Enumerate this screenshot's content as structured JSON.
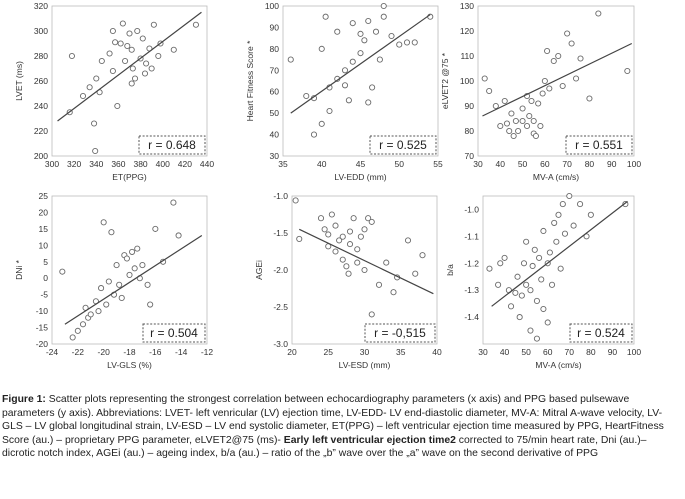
{
  "chart_data": [
    {
      "type": "scatter",
      "xlabel": "ET(PPG)",
      "ylabel": "LVET (ms)",
      "xlim": [
        300,
        440
      ],
      "ylim": [
        200,
        320
      ],
      "xticks": [
        300,
        320,
        340,
        360,
        380,
        400,
        420,
        440
      ],
      "yticks": [
        200,
        220,
        240,
        260,
        280,
        300,
        320
      ],
      "r_label": "r = 0.648",
      "fit": [
        [
          305,
          228
        ],
        [
          435,
          315
        ]
      ],
      "points": [
        [
          318,
          280
        ],
        [
          316,
          235
        ],
        [
          328,
          248
        ],
        [
          334,
          255
        ],
        [
          338,
          226
        ],
        [
          339,
          204
        ],
        [
          340,
          262
        ],
        [
          343,
          251
        ],
        [
          345,
          276
        ],
        [
          352,
          282
        ],
        [
          355,
          268
        ],
        [
          355,
          300
        ],
        [
          357,
          291
        ],
        [
          359,
          240
        ],
        [
          362,
          290
        ],
        [
          364,
          306
        ],
        [
          366,
          276
        ],
        [
          368,
          288
        ],
        [
          370,
          298
        ],
        [
          372,
          285
        ],
        [
          372,
          258
        ],
        [
          373,
          270
        ],
        [
          375,
          262
        ],
        [
          377,
          300
        ],
        [
          380,
          278
        ],
        [
          382,
          294
        ],
        [
          384,
          266
        ],
        [
          385,
          274
        ],
        [
          388,
          286
        ],
        [
          390,
          270
        ],
        [
          392,
          305
        ],
        [
          396,
          280
        ],
        [
          398,
          290
        ],
        [
          410,
          285
        ],
        [
          430,
          305
        ]
      ]
    },
    {
      "type": "scatter",
      "xlabel": "LV-EDD (mm)",
      "ylabel": "Heart Fitness Score *",
      "xlim": [
        35,
        55
      ],
      "ylim": [
        30,
        100
      ],
      "xticks": [
        35,
        40,
        45,
        50,
        55
      ],
      "yticks": [
        30,
        40,
        50,
        60,
        70,
        80,
        90,
        100
      ],
      "r_label": "r = 0.525",
      "fit": [
        [
          36,
          50
        ],
        [
          54,
          96
        ]
      ],
      "points": [
        [
          36,
          75
        ],
        [
          38,
          58
        ],
        [
          39,
          40
        ],
        [
          39,
          57
        ],
        [
          40,
          80
        ],
        [
          40,
          45
        ],
        [
          40.5,
          95
        ],
        [
          41,
          51
        ],
        [
          41,
          62
        ],
        [
          42,
          66
        ],
        [
          42,
          88
        ],
        [
          43,
          70
        ],
        [
          43,
          63
        ],
        [
          43.5,
          56
        ],
        [
          44,
          92
        ],
        [
          44,
          74
        ],
        [
          45,
          78
        ],
        [
          45,
          87
        ],
        [
          45.5,
          84
        ],
        [
          46,
          93
        ],
        [
          46,
          55
        ],
        [
          46.5,
          62
        ],
        [
          47,
          88
        ],
        [
          47.5,
          75
        ],
        [
          48,
          100
        ],
        [
          48,
          95
        ],
        [
          49,
          86
        ],
        [
          50,
          82
        ],
        [
          51,
          83
        ],
        [
          52,
          83
        ],
        [
          54,
          95
        ]
      ]
    },
    {
      "type": "scatter",
      "xlabel": "MV-A (cm/s)",
      "ylabel": "eLVET2 @75 *",
      "xlim": [
        30,
        100
      ],
      "ylim": [
        70,
        130
      ],
      "xticks": [
        30,
        40,
        50,
        60,
        70,
        80,
        90,
        100
      ],
      "yticks": [
        70,
        80,
        90,
        100,
        110,
        120,
        130
      ],
      "r_label": "r = 0.551",
      "fit": [
        [
          32,
          86
        ],
        [
          99,
          115
        ]
      ],
      "points": [
        [
          33,
          101
        ],
        [
          35,
          96
        ],
        [
          38,
          90
        ],
        [
          40,
          82
        ],
        [
          42,
          92
        ],
        [
          43,
          83
        ],
        [
          44,
          80
        ],
        [
          45,
          87
        ],
        [
          46,
          78
        ],
        [
          47,
          84
        ],
        [
          48,
          80
        ],
        [
          50,
          84
        ],
        [
          50,
          89
        ],
        [
          52,
          94
        ],
        [
          52,
          82
        ],
        [
          53,
          86
        ],
        [
          54,
          92
        ],
        [
          55,
          79
        ],
        [
          55,
          84
        ],
        [
          56,
          78
        ],
        [
          57,
          91
        ],
        [
          58,
          82
        ],
        [
          59,
          95
        ],
        [
          60,
          100
        ],
        [
          61,
          112
        ],
        [
          62,
          97
        ],
        [
          64,
          108
        ],
        [
          66,
          110
        ],
        [
          68,
          98
        ],
        [
          70,
          119
        ],
        [
          72,
          115
        ],
        [
          74,
          101
        ],
        [
          76,
          109
        ],
        [
          80,
          93
        ],
        [
          84,
          127
        ],
        [
          97,
          104
        ]
      ]
    },
    {
      "type": "scatter",
      "xlabel": "LV-GLS (%)",
      "ylabel": "DNi *",
      "xlim": [
        -24,
        -12
      ],
      "ylim": [
        -20,
        25
      ],
      "xticks": [
        -24,
        -22,
        -20,
        -18,
        -16,
        -14,
        -12
      ],
      "yticks": [
        -20,
        -15,
        -10,
        -5,
        0,
        5,
        10,
        15,
        20,
        25
      ],
      "r_label": "r = 0.504",
      "fit": [
        [
          -23,
          -14
        ],
        [
          -12.4,
          13
        ]
      ],
      "points": [
        [
          -23.2,
          2
        ],
        [
          -22.4,
          -18
        ],
        [
          -22,
          -16
        ],
        [
          -21.6,
          -14
        ],
        [
          -21.4,
          -9
        ],
        [
          -21.2,
          -12
        ],
        [
          -21,
          -11
        ],
        [
          -20.6,
          -7
        ],
        [
          -20.4,
          -10
        ],
        [
          -20.2,
          -3
        ],
        [
          -20,
          17
        ],
        [
          -19.8,
          -8
        ],
        [
          -19.6,
          -1
        ],
        [
          -19.4,
          14
        ],
        [
          -19.2,
          -5
        ],
        [
          -19,
          4
        ],
        [
          -18.8,
          -2
        ],
        [
          -18.6,
          -6
        ],
        [
          -18.4,
          7
        ],
        [
          -18.2,
          6
        ],
        [
          -18,
          1
        ],
        [
          -17.8,
          8
        ],
        [
          -17.6,
          3
        ],
        [
          -17.4,
          9
        ],
        [
          -17.2,
          0
        ],
        [
          -17,
          4
        ],
        [
          -16.6,
          -2
        ],
        [
          -16.4,
          -8
        ],
        [
          -16,
          15
        ],
        [
          -15.4,
          5
        ],
        [
          -14.6,
          23
        ],
        [
          -14.2,
          13
        ]
      ]
    },
    {
      "type": "scatter",
      "xlabel": "LV-ESD (mm)",
      "ylabel": "AGEi",
      "xlim": [
        20,
        40
      ],
      "ylim": [
        -3.0,
        -1.0
      ],
      "xticks": [
        20,
        25,
        30,
        35,
        40
      ],
      "yticks": [
        -1.0,
        -1.5,
        -2.0,
        -2.5,
        -3.0
      ],
      "yticklabels": [
        "-1.0",
        "-1.5",
        "-2.0",
        "-2.5",
        "-3.0"
      ],
      "r_label": "r = -0,515",
      "fit": [
        [
          21,
          -1.45
        ],
        [
          39.5,
          -2.32
        ]
      ],
      "points": [
        [
          20.5,
          -1.06
        ],
        [
          21,
          -1.58
        ],
        [
          24,
          -1.3
        ],
        [
          24.5,
          -1.45
        ],
        [
          25,
          -1.52
        ],
        [
          25,
          -1.68
        ],
        [
          25.5,
          -1.25
        ],
        [
          26,
          -1.75
        ],
        [
          26,
          -1.4
        ],
        [
          26.5,
          -1.6
        ],
        [
          27,
          -1.55
        ],
        [
          27,
          -1.86
        ],
        [
          27.5,
          -1.95
        ],
        [
          27.8,
          -2.05
        ],
        [
          28,
          -1.48
        ],
        [
          28,
          -1.65
        ],
        [
          28.5,
          -1.3
        ],
        [
          29,
          -1.72
        ],
        [
          29,
          -1.9
        ],
        [
          29.5,
          -1.55
        ],
        [
          30,
          -1.45
        ],
        [
          30,
          -2.0
        ],
        [
          30.5,
          -1.3
        ],
        [
          31,
          -1.35
        ],
        [
          31,
          -2.6
        ],
        [
          32,
          -2.2
        ],
        [
          33,
          -1.9
        ],
        [
          34,
          -2.3
        ],
        [
          34.5,
          -2.1
        ],
        [
          36,
          -1.6
        ],
        [
          37,
          -2.05
        ],
        [
          38,
          -1.8
        ]
      ]
    },
    {
      "type": "scatter",
      "xlabel": "MV-A (cm/s)",
      "ylabel": "b/a",
      "xlim": [
        30,
        100
      ],
      "ylim": [
        -1.5,
        -0.95
      ],
      "xticks": [
        30,
        40,
        50,
        60,
        70,
        80,
        90,
        100
      ],
      "yticks": [
        -1.0,
        -1.1,
        -1.2,
        -1.3,
        -1.4
      ],
      "yticklabels": [
        "-1.0",
        "-1.1",
        "-1.2",
        "-1.3",
        "-1.4"
      ],
      "r_label": "r = 0.524",
      "fit": [
        [
          34,
          -1.36
        ],
        [
          97,
          -0.97
        ]
      ],
      "points": [
        [
          33,
          -1.22
        ],
        [
          37,
          -1.28
        ],
        [
          38,
          -1.2
        ],
        [
          40,
          -1.18
        ],
        [
          42,
          -1.3
        ],
        [
          43,
          -1.36
        ],
        [
          45,
          -1.31
        ],
        [
          46,
          -1.25
        ],
        [
          47,
          -1.4
        ],
        [
          48,
          -1.32
        ],
        [
          49,
          -1.2
        ],
        [
          50,
          -1.28
        ],
        [
          50,
          -1.12
        ],
        [
          52,
          -1.45
        ],
        [
          52,
          -1.3
        ],
        [
          53,
          -1.21
        ],
        [
          54,
          -1.15
        ],
        [
          55,
          -1.34
        ],
        [
          55,
          -1.48
        ],
        [
          56,
          -1.18
        ],
        [
          57,
          -1.26
        ],
        [
          58,
          -1.08
        ],
        [
          58,
          -1.37
        ],
        [
          60,
          -1.42
        ],
        [
          60,
          -1.2
        ],
        [
          61,
          -1.16
        ],
        [
          62,
          -1.28
        ],
        [
          63,
          -1.05
        ],
        [
          64,
          -1.12
        ],
        [
          65,
          -1.02
        ],
        [
          66,
          -1.22
        ],
        [
          67,
          -0.98
        ],
        [
          68,
          -1.09
        ],
        [
          70,
          -0.95
        ],
        [
          72,
          -1.06
        ],
        [
          75,
          -0.98
        ],
        [
          78,
          -1.1
        ],
        [
          80,
          -1.02
        ],
        [
          96,
          -0.98
        ]
      ]
    }
  ],
  "caption": {
    "lead": "Figure 1:",
    "part1": " Scatter plots representing the strongest correlation between echocardiography parameters (x axis) and PPG based pulsewave parameters (y axis). Abbreviations: LVET- left venricular (LV) ejection time, LV-EDD- LV end-diastolic diameter, MV-A: Mitral A-wave velocity, LV-GLS – LV global longitudinal strain, LV-ESD – LV end systolic diameter, ET(PPG) – left ventricular ejection time measured by PPG, HeartFitness Score (au.) – proprietary PPG parameter, eLVET2@75 (ms)- ",
    "bold": "Early left ventricular ejection time2",
    "part2": " corrected to 75/min heart rate, Dni (au.)– dicrotic notch index, AGEi (au.) – ageing index, b/a (au.) – ratio of the „b” wave over the „a” wave on the second derivative of PPG"
  }
}
